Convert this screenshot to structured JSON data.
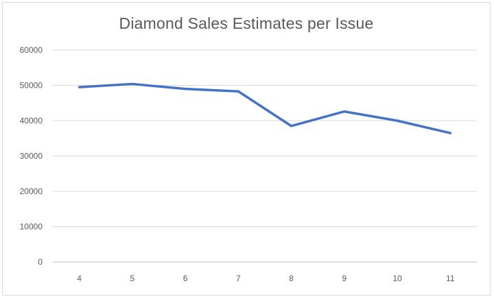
{
  "chart_data": {
    "type": "line",
    "title": "Diamond Sales Estimates per Issue",
    "xlabel": "",
    "ylabel": "",
    "categories": [
      "4",
      "5",
      "6",
      "7",
      "8",
      "9",
      "10",
      "11"
    ],
    "series": [
      {
        "values": [
          49500,
          50400,
          49000,
          48300,
          38500,
          42600,
          40000,
          36500
        ]
      }
    ],
    "ylim": [
      0,
      60000
    ],
    "yticks": [
      "0",
      "10000",
      "20000",
      "30000",
      "40000",
      "50000",
      "60000"
    ],
    "grid": "horizontal",
    "legend": "none",
    "colors": {
      "line": "#4472c4",
      "grid": "#d9d9d9",
      "axis": "#bfbfbf",
      "text": "#595959"
    }
  }
}
